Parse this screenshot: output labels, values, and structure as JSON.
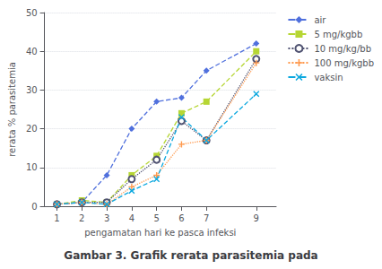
{
  "chart_data": {
    "type": "line",
    "title": "Gambar 3. Grafik rerata parasitemia pada",
    "x_label": "pengamatan hari ke pasca infeksi",
    "y_label": "rerata % parasitemia",
    "x": [
      1,
      2,
      3,
      4,
      5,
      6,
      7,
      9
    ],
    "series": [
      {
        "name": "air",
        "values": [
          0.5,
          1.0,
          8,
          20,
          27,
          28,
          35,
          42
        ],
        "marker": "diamond",
        "line_style": "dashed"
      },
      {
        "name": "5 mg/kgbb",
        "values": [
          0.5,
          1.5,
          1,
          8,
          13,
          24,
          27,
          40
        ],
        "marker": "square",
        "line_style": "dashed"
      },
      {
        "name": "10 mg/kg/bb",
        "values": [
          0.5,
          1.0,
          1,
          7,
          12,
          22,
          17,
          38
        ],
        "marker": "circle",
        "line_style": "dotted"
      },
      {
        "name": "100 mg/kgbb",
        "values": [
          0.5,
          1.0,
          0.5,
          5,
          8,
          16,
          17,
          37
        ],
        "marker": "plus",
        "line_style": "dotted"
      },
      {
        "name": "vaksin",
        "values": [
          0.5,
          1.0,
          0.5,
          4,
          7,
          23,
          17,
          29
        ],
        "marker": "x",
        "line_style": "dashed"
      }
    ],
    "xlim": [
      0.5,
      9.8
    ],
    "xticks": [
      1,
      2,
      3,
      4,
      5,
      6,
      7,
      9
    ],
    "ylim": [
      0,
      50
    ],
    "yticks": [
      0,
      10,
      20,
      30,
      40,
      50
    ],
    "grid": true,
    "legend": "right"
  }
}
